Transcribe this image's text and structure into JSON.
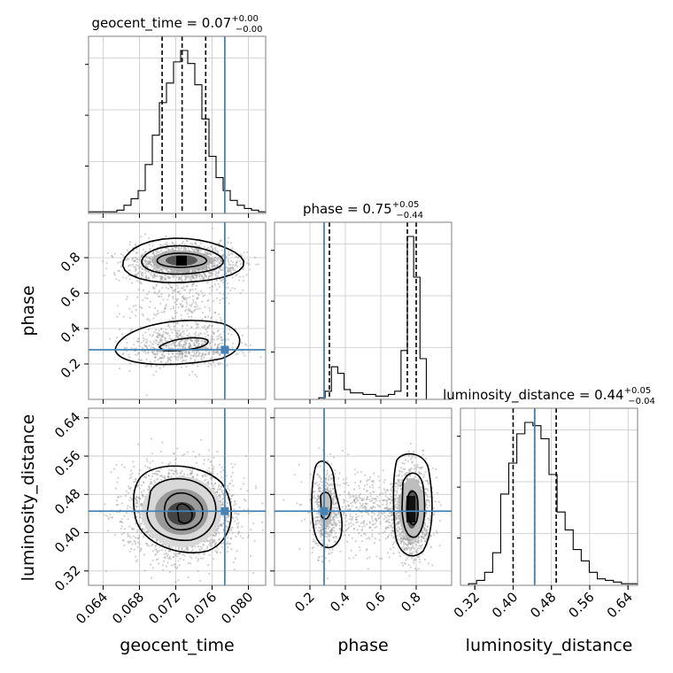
{
  "chart_data": {
    "type": "corner",
    "truth_color": "#4682b4",
    "parameters": [
      {
        "name": "geocent_time",
        "truth": 0.0774,
        "range": [
          0.0624,
          0.0819
        ],
        "ticks": [
          "0.064",
          "0.068",
          "0.072",
          "0.076",
          "0.080"
        ],
        "tick_values": [
          0.064,
          0.068,
          0.072,
          0.076,
          0.08
        ],
        "median": 0.0727,
        "q_low": 0.0705,
        "q_high": 0.0753,
        "title_prefix": "geocent_time = 0.07",
        "title_sup": "+0.00",
        "title_sub": "−0.00",
        "hist": [
          1,
          1,
          1,
          1,
          2,
          5,
          9,
          14,
          30,
          48,
          68,
          80,
          93,
          100,
          92,
          79,
          58,
          35,
          22,
          14,
          8,
          5,
          3,
          2,
          1
        ]
      },
      {
        "name": "phase",
        "truth": 0.28,
        "range": [
          0.0,
          1.0
        ],
        "ticks": [
          "0.2",
          "0.4",
          "0.6",
          "0.8"
        ],
        "tick_values": [
          0.2,
          0.4,
          0.6,
          0.8
        ],
        "median": 0.75,
        "q_low": 0.31,
        "q_high": 0.8,
        "title_prefix": "phase = 0.75",
        "title_sup": "+0.05",
        "title_sub": "−0.44",
        "hist": [
          0,
          0,
          0,
          0,
          0,
          0,
          0,
          1,
          5,
          20,
          16,
          6,
          4,
          4,
          3,
          3,
          2,
          2,
          3,
          5,
          30,
          100,
          75,
          25,
          0,
          0,
          0,
          0
        ]
      },
      {
        "name": "luminosity_distance",
        "truth": 0.445,
        "range": [
          0.29,
          0.66
        ],
        "ticks": [
          "0.32",
          "0.40",
          "0.48",
          "0.56",
          "0.64"
        ],
        "tick_values": [
          0.32,
          0.4,
          0.48,
          0.56,
          0.64
        ],
        "median": 0.445,
        "q_low": 0.4,
        "q_high": 0.49,
        "title_prefix": "luminosity_distance = 0.44",
        "title_sup": "+0.05",
        "title_sub": "−0.04",
        "hist": [
          0,
          1,
          3,
          8,
          20,
          56,
          75,
          93,
          100,
          98,
          90,
          68,
          45,
          34,
          22,
          15,
          8,
          4,
          3,
          2,
          1,
          1
        ]
      }
    ]
  }
}
